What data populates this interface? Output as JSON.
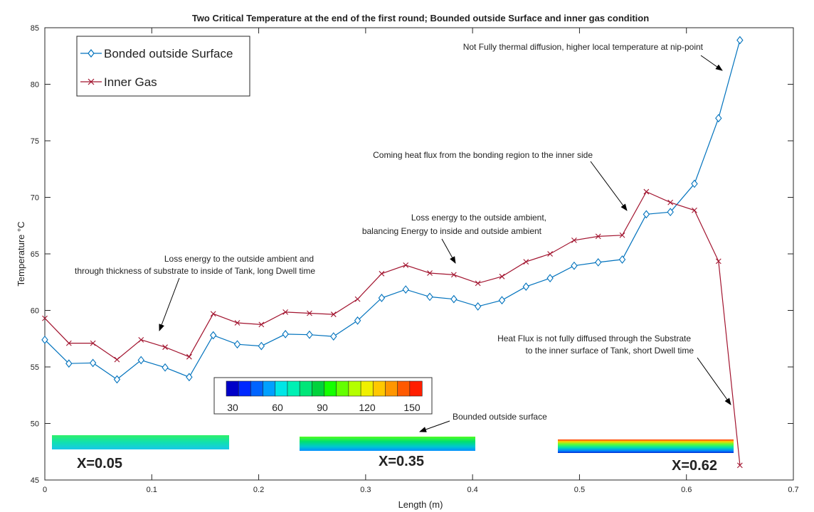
{
  "chart_data": {
    "type": "line",
    "title": "Two Critical Temperature at the end of the first round; Bounded outside Surface and inner gas condition",
    "xlabel": "Length (m)",
    "ylabel": "Temperature °C",
    "xlim": [
      0,
      0.7
    ],
    "ylim": [
      45,
      85
    ],
    "xticks": [
      0,
      0.1,
      0.2,
      0.3,
      0.4,
      0.5,
      0.6,
      0.7
    ],
    "xtick_labels": [
      "0",
      "0.1",
      "0.2",
      "0.3",
      "0.4",
      "0.5",
      "0.6",
      "0.7"
    ],
    "yticks": [
      45,
      50,
      55,
      60,
      65,
      70,
      75,
      80,
      85
    ],
    "ytick_labels": [
      "45",
      "50",
      "55",
      "60",
      "65",
      "70",
      "75",
      "80",
      "85"
    ],
    "grid": false,
    "legend_position": "top-left",
    "series": [
      {
        "name": "Bonded outside Surface",
        "color": "#0072BD",
        "marker": "diamond",
        "x": [
          0,
          0.0225,
          0.045,
          0.0675,
          0.09,
          0.1125,
          0.135,
          0.1575,
          0.18,
          0.2025,
          0.225,
          0.2475,
          0.27,
          0.2925,
          0.315,
          0.3375,
          0.36,
          0.3825,
          0.405,
          0.4275,
          0.45,
          0.4725,
          0.495,
          0.5175,
          0.54,
          0.5625,
          0.585,
          0.6075,
          0.63,
          0.65
        ],
        "y": [
          57.4,
          55.3,
          55.35,
          53.9,
          55.6,
          54.95,
          54.1,
          57.8,
          57.0,
          56.85,
          57.9,
          57.85,
          57.7,
          59.1,
          61.1,
          61.85,
          61.2,
          61.0,
          60.35,
          60.9,
          62.1,
          62.85,
          63.95,
          64.25,
          64.5,
          68.5,
          68.7,
          71.2,
          77.0,
          83.9
        ]
      },
      {
        "name": "Inner Gas",
        "color": "#A2142F",
        "marker": "x",
        "x": [
          0,
          0.0225,
          0.045,
          0.0675,
          0.09,
          0.1125,
          0.135,
          0.1575,
          0.18,
          0.2025,
          0.225,
          0.2475,
          0.27,
          0.2925,
          0.315,
          0.3375,
          0.36,
          0.3825,
          0.405,
          0.4275,
          0.45,
          0.4725,
          0.495,
          0.5175,
          0.54,
          0.5625,
          0.585,
          0.6075,
          0.63,
          0.65
        ],
        "y": [
          59.3,
          57.1,
          57.1,
          55.65,
          57.4,
          56.75,
          55.9,
          59.7,
          58.9,
          58.75,
          59.85,
          59.75,
          59.65,
          61.0,
          63.25,
          64.0,
          63.3,
          63.15,
          62.4,
          63.0,
          64.3,
          65.0,
          66.2,
          66.55,
          66.65,
          70.5,
          69.55,
          68.85,
          64.35,
          46.3
        ]
      }
    ],
    "annotations": [
      {
        "text": "Not Fully thermal diffusion, higher local temperature at nip-point"
      },
      {
        "text": "Coming heat flux from the bonding region to the inner side"
      },
      {
        "text": "Loss energy to the outside ambient,"
      },
      {
        "text": "balancing Energy to inside and outside ambient"
      },
      {
        "text": "Loss energy to the outside ambient and"
      },
      {
        "text": "through thickness of substrate to inside of Tank, long Dwell time"
      },
      {
        "text": "Heat Flux is not fully diffused through the Substrate"
      },
      {
        "text": "to the inner surface of Tank, short Dwell time"
      },
      {
        "text": "Bounded outside surface"
      }
    ],
    "colorbar": {
      "ticks": [
        "30",
        "60",
        "90",
        "120",
        "150"
      ],
      "colors": [
        "#0000c8",
        "#0028ff",
        "#0064ff",
        "#00a0ff",
        "#00e6e6",
        "#00f0b4",
        "#00e678",
        "#00d23c",
        "#14ff00",
        "#64ff00",
        "#b4ff00",
        "#f0f000",
        "#ffc800",
        "#ff9600",
        "#ff5a00",
        "#ff1e00"
      ]
    },
    "inset_labels": [
      "X=0.05",
      "X=0.35",
      "X=0.62"
    ]
  }
}
